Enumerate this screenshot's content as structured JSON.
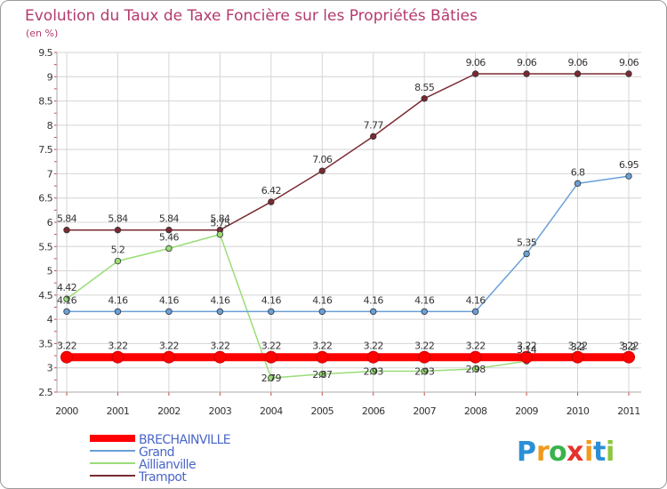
{
  "chart_data": {
    "type": "line",
    "title": "Evolution du Taux de Taxe Foncière sur les Propriétés Bâties",
    "subtitle": "(en %)",
    "xlabel": "",
    "ylabel": "",
    "x": [
      "2000",
      "2001",
      "2002",
      "2003",
      "2004",
      "2005",
      "2006",
      "2007",
      "2008",
      "2009",
      "2010",
      "2011"
    ],
    "ylim": [
      2.5,
      9.5
    ],
    "yticks": [
      "2.5",
      "3",
      "3.5",
      "4",
      "4.5",
      "5",
      "5.5",
      "6",
      "6.5",
      "7",
      "7.5",
      "8",
      "8.5",
      "9",
      "9.5"
    ],
    "grid": true,
    "legend_position": "bottom-left",
    "series": [
      {
        "name": "Trampot",
        "color": "#7a2a32",
        "values": [
          5.84,
          5.84,
          5.84,
          5.84,
          6.42,
          7.06,
          7.77,
          8.55,
          9.06,
          9.06,
          9.06,
          9.06
        ],
        "labels": [
          "5.84",
          "5.84",
          "5.84",
          "5.84",
          "6.42",
          "7.06",
          "7.77",
          "8.55",
          "9.06",
          "9.06",
          "9.06",
          "9.06"
        ]
      },
      {
        "name": "Aillianville",
        "color": "#99dd77",
        "values": [
          4.42,
          5.2,
          5.46,
          5.75,
          2.79,
          2.87,
          2.93,
          2.93,
          2.98,
          3.14,
          3.2,
          3.2
        ],
        "labels": [
          "4.42",
          "5.2",
          "5.46",
          "5.75",
          "2.79",
          "2.87",
          "2.93",
          "2.93",
          "2.98",
          "3.14",
          "3.2",
          "3.2"
        ]
      },
      {
        "name": "Grand",
        "color": "#6aa0d8",
        "values": [
          4.16,
          4.16,
          4.16,
          4.16,
          4.16,
          4.16,
          4.16,
          4.16,
          4.16,
          5.35,
          6.8,
          6.95
        ],
        "labels": [
          "4.16",
          "4.16",
          "4.16",
          "4.16",
          "4.16",
          "4.16",
          "4.16",
          "4.16",
          "4.16",
          "5.35",
          "6.8",
          "6.95"
        ]
      },
      {
        "name": "BRECHAINVILLE",
        "color": "#ff0000",
        "values": [
          3.22,
          3.22,
          3.22,
          3.22,
          3.22,
          3.22,
          3.22,
          3.22,
          3.22,
          3.22,
          3.22,
          3.22
        ],
        "labels": [
          "3.22",
          "3.22",
          "3.22",
          "3.22",
          "3.22",
          "3.22",
          "3.22",
          "3.22",
          "3.22",
          "3.22",
          "3.22",
          "3.22"
        ]
      }
    ],
    "legend": [
      "BRECHAINVILLE",
      "Grand",
      "Aillianville",
      "Trampot"
    ]
  },
  "logo": {
    "letters": [
      "P",
      "r",
      "o",
      "x",
      "i",
      "t",
      "i"
    ],
    "colors": [
      "#2b8fd6",
      "#f19a1d",
      "#39b34a",
      "#e5322d",
      "#f19a1d",
      "#2b8fd6",
      "#8cc63f"
    ]
  }
}
